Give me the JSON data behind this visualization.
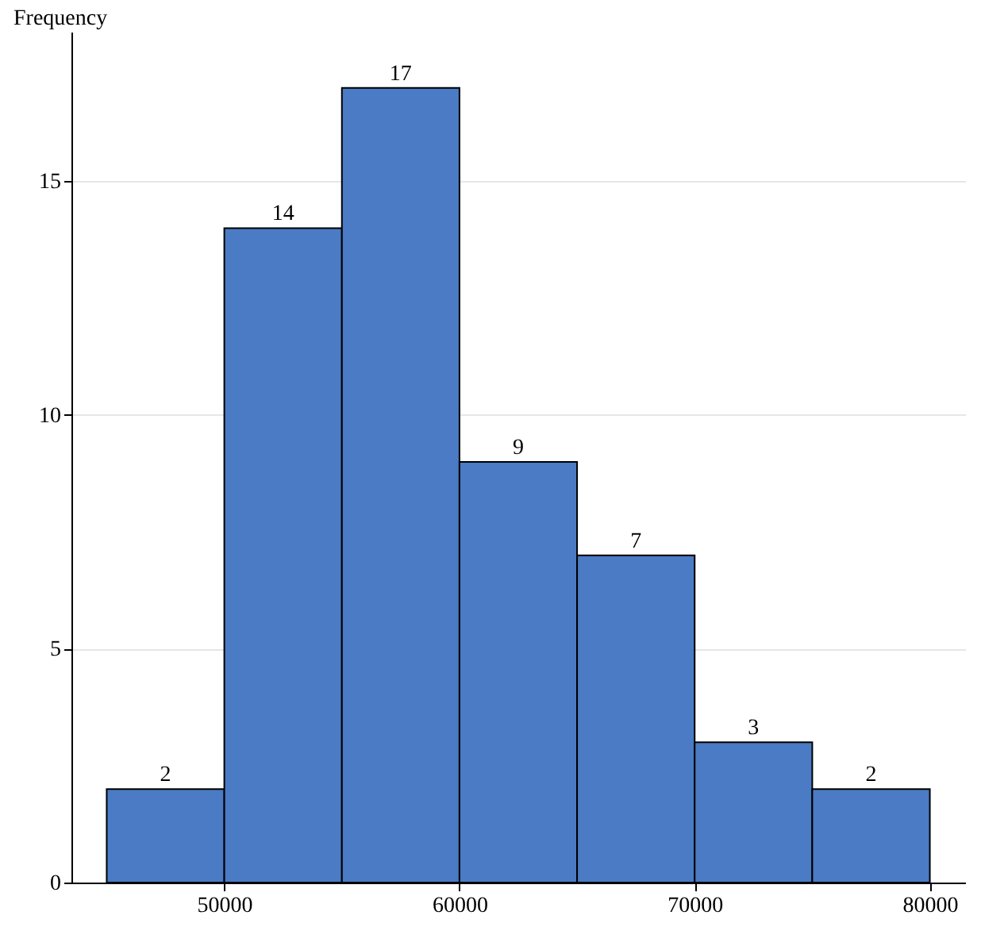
{
  "chart_data": {
    "type": "histogram",
    "ylabel": "Frequency",
    "bins": [
      45000,
      50000,
      55000,
      60000,
      65000,
      70000,
      75000,
      80000
    ],
    "values": [
      2,
      14,
      17,
      9,
      7,
      3,
      2
    ],
    "color": "#4a7bc4",
    "xlim": [
      43500,
      81500
    ],
    "xticks": [
      50000,
      60000,
      70000,
      80000
    ],
    "ylim": [
      0,
      18.2
    ],
    "yticks": [
      0,
      5,
      10,
      15
    ],
    "grid": "y",
    "data_labels": true
  }
}
